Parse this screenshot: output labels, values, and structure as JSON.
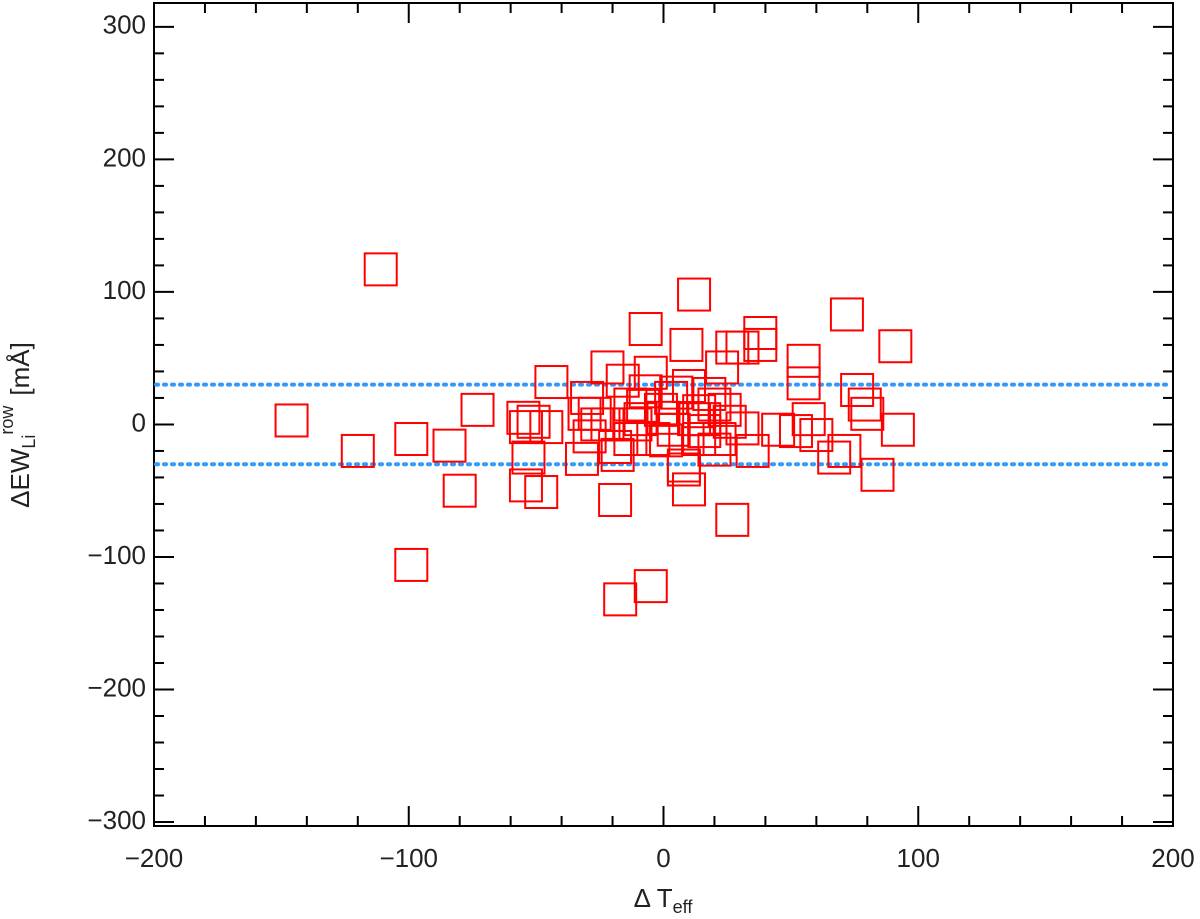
{
  "chart_data": {
    "type": "scatter",
    "x_label": "Δ T",
    "x_label_sub": "eff",
    "y_label": "ΔEW",
    "y_label_sub": "Li",
    "y_label_sup": "row",
    "y_label_unit": "[mÅ]",
    "color": "#ff0000",
    "xlim": [
      -200,
      200
    ],
    "ylim": [
      -303,
      318
    ],
    "xticks": [
      {
        "value": -200,
        "label": "−200"
      },
      {
        "value": -100,
        "label": "−100"
      },
      0,
      100,
      200
    ],
    "yticks": [
      {
        "value": -300,
        "label": "−300"
      },
      {
        "value": -200,
        "label": "−200"
      },
      {
        "value": -100,
        "label": "−100"
      },
      0,
      100,
      200,
      300
    ],
    "xminorticks": [
      -180,
      -160,
      -140,
      -120,
      -80,
      -60,
      -40,
      -20,
      20,
      40,
      60,
      80,
      120,
      140,
      160,
      180
    ],
    "yminorticks": [
      -280,
      -260,
      -240,
      -220,
      -180,
      -160,
      -140,
      -120,
      -80,
      -60,
      -40,
      -20,
      20,
      40,
      60,
      80,
      120,
      140,
      160,
      180,
      220,
      240,
      260,
      280
    ],
    "hlines": [
      30,
      -30
    ],
    "hline_color": "#3399ff",
    "x": [
      -111,
      -146,
      -120,
      -99,
      -99,
      -84,
      -80,
      -73,
      -55,
      -54,
      -53,
      -54,
      -48,
      -51,
      -46,
      -44,
      -32,
      -31,
      -30,
      -26,
      -22,
      -19,
      -17,
      -18,
      -16,
      -13,
      -13,
      -7,
      -5,
      -5,
      -7,
      -9,
      -1,
      1,
      3,
      5,
      8,
      9,
      10,
      10,
      12,
      14,
      16,
      16,
      20,
      22,
      23,
      27,
      24,
      27,
      31,
      31,
      35,
      38,
      38,
      45,
      52,
      55,
      55,
      57,
      60,
      67,
      71,
      72,
      76,
      79,
      80,
      84,
      91,
      92,
      -19,
      -22,
      -27,
      -11,
      -4,
      0,
      4,
      12,
      18,
      20,
      26,
      -29,
      -8,
      14,
      8
    ],
    "y": [
      117,
      3,
      -20,
      -11,
      -106,
      -16,
      -50,
      11,
      5,
      -2,
      -25,
      -46,
      -51,
      2,
      -2,
      32,
      -26,
      8,
      20,
      0,
      43,
      -57,
      -132,
      -23,
      33,
      15,
      -11,
      72,
      -122,
      39,
      25,
      4,
      11,
      -12,
      20,
      24,
      -31,
      60,
      29,
      -49,
      98,
      10,
      -5,
      4,
      -19,
      -11,
      43,
      58,
      11,
      -72,
      58,
      -3,
      -20,
      60,
      69,
      -4,
      -5,
      48,
      31,
      4,
      -8,
      -25,
      -20,
      83,
      26,
      15,
      8,
      -38,
      59,
      -4,
      -17,
      0,
      8,
      0,
      -11,
      5,
      -4,
      4,
      23,
      15,
      2,
      -9,
      14,
      -11,
      -34
    ]
  }
}
